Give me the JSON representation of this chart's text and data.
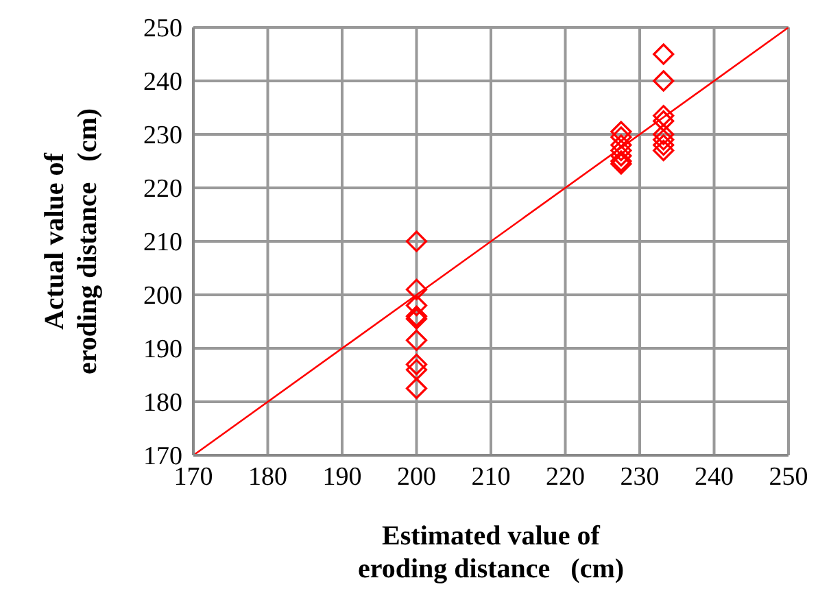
{
  "chart_data": {
    "type": "scatter",
    "xlabel": "Estimated value of\neroding distance   (cm)",
    "ylabel": "Actual value of\neroding distance   (cm)",
    "xlim": [
      170,
      250
    ],
    "xticks": [
      170,
      180,
      190,
      200,
      210,
      220,
      230,
      240,
      250
    ],
    "ylim": [
      170,
      250
    ],
    "yticks": [
      170,
      180,
      190,
      200,
      210,
      220,
      230,
      240,
      250
    ],
    "grid": true,
    "marker": "diamond",
    "series": [
      {
        "color": "#ff0000",
        "x": [
          200,
          200,
          200,
          200,
          200,
          200,
          200,
          200,
          200,
          227.5,
          227.5,
          227.5,
          227.5,
          227.5,
          227.5,
          227.5,
          233.2,
          233.2,
          233.2,
          233.2,
          233.2,
          233.2,
          233.2,
          233.2
        ],
        "values": [
          210,
          201,
          198,
          196,
          195.5,
          191.5,
          187,
          186,
          182.5,
          230.5,
          229.5,
          228,
          227,
          226,
          225,
          224.5,
          245,
          240,
          233.5,
          232.5,
          230,
          229,
          228,
          227
        ]
      },
      {
        "type": "line",
        "color": "#ff0000",
        "marker": "none",
        "x": [
          170,
          250
        ],
        "values": [
          170,
          250
        ]
      }
    ]
  }
}
